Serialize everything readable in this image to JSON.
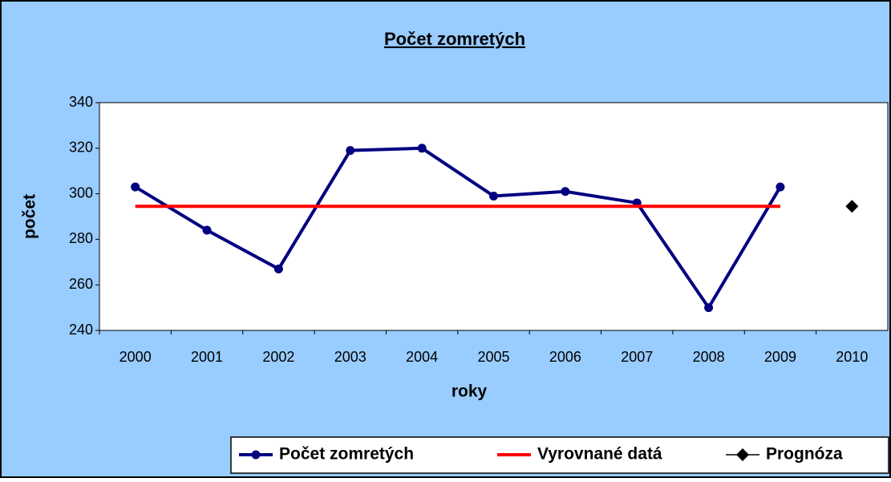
{
  "chart_data": {
    "type": "line",
    "title": "Počet zomretých",
    "x_label": "roky",
    "y_label": "počet",
    "categories": [
      "2000",
      "2001",
      "2002",
      "2003",
      "2004",
      "2005",
      "2006",
      "2007",
      "2008",
      "2009",
      "2010"
    ],
    "series": [
      {
        "name": "Počet zomretých",
        "color": "#000080",
        "marker": "circle",
        "values": [
          303,
          284,
          267,
          319,
          320,
          299,
          301,
          296,
          250,
          303,
          null
        ]
      },
      {
        "name": "Vyrovnané datá",
        "color": "#ff0000",
        "marker": "none",
        "values": [
          294.5,
          294.5,
          294.5,
          294.5,
          294.5,
          294.5,
          294.5,
          294.5,
          294.5,
          294.5,
          null
        ]
      },
      {
        "name": "Prognóza",
        "color": "#000000",
        "marker": "diamond",
        "values": [
          null,
          null,
          null,
          null,
          null,
          null,
          null,
          null,
          null,
          null,
          294.5
        ]
      }
    ],
    "ylim": [
      240,
      340
    ],
    "yticks": [
      240,
      260,
      280,
      300,
      320,
      340
    ],
    "grid": false,
    "legend": "bottom"
  }
}
